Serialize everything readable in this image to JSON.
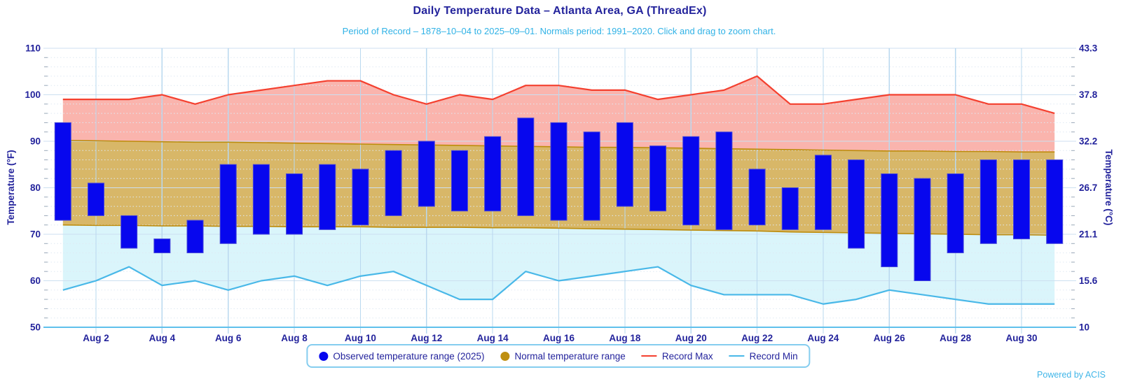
{
  "header": {
    "title": "Daily Temperature Data – Atlanta Area, GA (ThreadEx)",
    "subtitle": "Period of Record – 1878–10–04 to 2025–09–01. Normals period: 1991–2020. Click and drag to zoom chart."
  },
  "footer": {
    "powered_by": "Powered by ACIS"
  },
  "axes": {
    "left_title": "Temperature (°F)",
    "right_title": "Temperature (°C)"
  },
  "colors": {
    "navy_text": "#23239c",
    "subtitle_text": "#30b2e6",
    "observed_bar": "#0707ee",
    "observed_bar_edge": "#4747d8",
    "record_max_line": "#f4402f",
    "record_max_fill": "#fab4ad",
    "normal_fill": "#d8b768",
    "normal_border": "#bd8c0c",
    "normal_legend_dot": "#bf8f10",
    "record_min_line": "#49b8e8",
    "record_min_fill": "#daf5fb",
    "axis_line": "#5fc0ec",
    "powered_by_text": "#41b6e8"
  },
  "chart_data": {
    "type": "bar",
    "title": "Daily Temperature Data – Atlanta Area, GA (ThreadEx)",
    "xlabel": "",
    "ylabel_left": "Temperature (°F)",
    "ylabel_right": "Temperature (°C)",
    "ylim_f": [
      50,
      110
    ],
    "yticks_f": [
      50,
      60,
      70,
      80,
      90,
      100,
      110
    ],
    "yticks_c_labels": [
      "10",
      "15.6",
      "21.1",
      "26.7",
      "32.2",
      "37.8",
      "43.3"
    ],
    "grid": true,
    "legend_position": "bottom",
    "categories": [
      "Aug 1",
      "Aug 2",
      "Aug 3",
      "Aug 4",
      "Aug 5",
      "Aug 6",
      "Aug 7",
      "Aug 8",
      "Aug 9",
      "Aug 10",
      "Aug 11",
      "Aug 12",
      "Aug 13",
      "Aug 14",
      "Aug 15",
      "Aug 16",
      "Aug 17",
      "Aug 18",
      "Aug 19",
      "Aug 20",
      "Aug 21",
      "Aug 22",
      "Aug 23",
      "Aug 24",
      "Aug 25",
      "Aug 26",
      "Aug 27",
      "Aug 28",
      "Aug 29",
      "Aug 30",
      "Aug 31"
    ],
    "x_labeled_ticks": [
      "Aug 2",
      "Aug 4",
      "Aug 6",
      "Aug 8",
      "Aug 10",
      "Aug 12",
      "Aug 14",
      "Aug 16",
      "Aug 18",
      "Aug 20",
      "Aug 22",
      "Aug 24",
      "Aug 26",
      "Aug 28",
      "Aug 30"
    ],
    "series": [
      {
        "name": "Observed temperature range (2025)",
        "type": "columnrange",
        "low": [
          73,
          74,
          67,
          66,
          66,
          68,
          70,
          70,
          71,
          72,
          74,
          76,
          75,
          75,
          74,
          73,
          73,
          76,
          75,
          72,
          71,
          72,
          71,
          71,
          67,
          63,
          60,
          66,
          68,
          69,
          68
        ],
        "high": [
          94,
          81,
          74,
          69,
          73,
          85,
          85,
          83,
          85,
          84,
          88,
          90,
          88,
          91,
          95,
          94,
          92,
          94,
          89,
          91,
          92,
          84,
          80,
          87,
          86,
          83,
          82,
          83,
          86,
          86,
          86
        ]
      },
      {
        "name": "Normal temperature range",
        "type": "arearange",
        "low": [
          72.0,
          71.9,
          71.9,
          71.8,
          71.8,
          71.7,
          71.7,
          71.6,
          71.6,
          71.6,
          71.5,
          71.5,
          71.5,
          71.4,
          71.4,
          71.3,
          71.2,
          71.1,
          71.0,
          70.9,
          70.8,
          70.7,
          70.5,
          70.4,
          70.3,
          70.2,
          70.1,
          70.0,
          69.9,
          69.9,
          69.8
        ],
        "high": [
          90.2,
          90.1,
          90.0,
          89.9,
          89.8,
          89.8,
          89.7,
          89.6,
          89.5,
          89.4,
          89.3,
          89.2,
          89.1,
          89.0,
          88.9,
          88.8,
          88.7,
          88.7,
          88.6,
          88.5,
          88.4,
          88.3,
          88.2,
          88.1,
          88.0,
          87.9,
          87.9,
          87.8,
          87.8,
          87.7,
          87.7
        ]
      },
      {
        "name": "Record Max",
        "type": "line",
        "values": [
          99,
          99,
          99,
          100,
          98,
          100,
          101,
          102,
          103,
          103,
          100,
          98,
          100,
          99,
          102,
          102,
          101,
          101,
          99,
          100,
          101,
          104,
          98,
          98,
          99,
          100,
          100,
          100,
          98,
          98,
          96
        ]
      },
      {
        "name": "Record Min",
        "type": "line",
        "values": [
          58,
          60,
          63,
          59,
          60,
          58,
          60,
          61,
          59,
          61,
          62,
          59,
          56,
          56,
          62,
          60,
          61,
          62,
          63,
          59,
          57,
          57,
          57,
          55,
          56,
          58,
          57,
          56,
          55,
          55,
          55
        ]
      }
    ]
  }
}
